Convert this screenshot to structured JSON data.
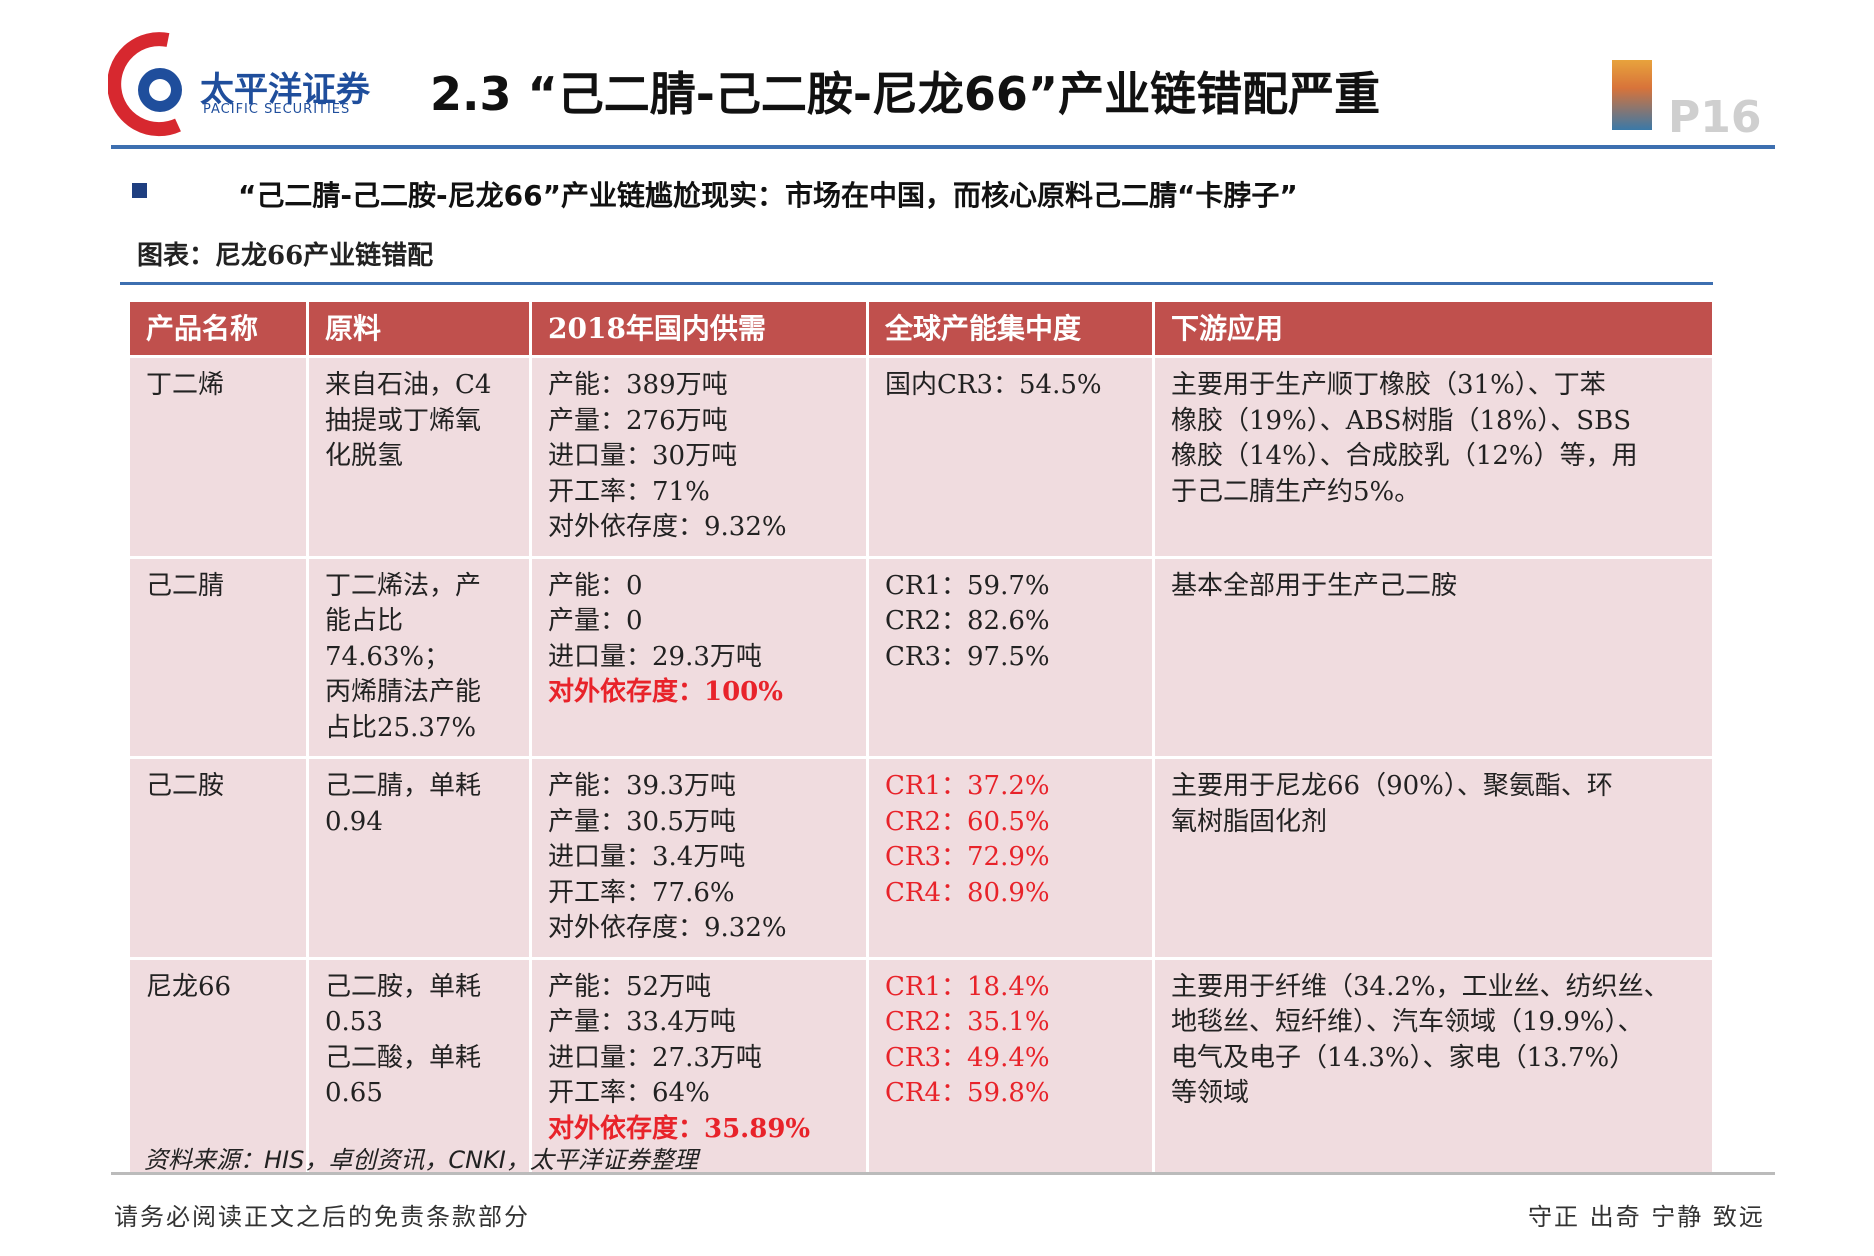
{
  "header": {
    "logo_cn": "太平洋证券",
    "logo_en": "PACIFIC SECURITIES",
    "title": "2.3 “己二腈-己二胺-尼龙66”产业链错配严重",
    "page": "P16"
  },
  "bullet": "“己二腈-己二胺-尼龙66”产业链尴尬现实：市场在中国，而核心原料己二腈“卡脖子”",
  "caption": "图表：尼龙66产业链错配",
  "table": {
    "header": [
      "产品名称",
      "原料",
      "2018年国内供需",
      "全球产能集中度",
      "下游应用"
    ],
    "rows": [
      [
        [
          "丁二烯"
        ],
        [
          "来自石油，C4",
          "抽提或丁烯氧",
          "化脱氢"
        ],
        [
          "产能：389万吨",
          "产量：276万吨",
          "进口量：30万吨",
          "开工率：71%",
          "对外依存度：9.32%"
        ],
        [
          "国内CR3：54.5%"
        ],
        [
          "主要用于生产顺丁橡胶（31%）、丁苯",
          "橡胶（19%）、ABS树脂（18%）、SBS",
          "橡胶（14%）、合成胶乳（12%）等，用",
          "于己二腈生产约5%。"
        ]
      ],
      [
        [
          "己二腈"
        ],
        [
          "丁二烯法，产",
          "能占比74.63%；",
          "丙烯腈法产能",
          "占比25.37%"
        ],
        [
          "产能：0",
          "产量：0",
          "进口量：29.3万吨",
          {
            "text": "对外依存度：100%",
            "color": "#e8232a",
            "bold": true
          }
        ],
        [
          "CR1：59.7%",
          "CR2：82.6%",
          "CR3：97.5%"
        ],
        [
          "基本全部用于生产己二胺"
        ]
      ],
      [
        [
          "己二胺"
        ],
        [
          "己二腈，单耗",
          "0.94"
        ],
        [
          "产能：39.3万吨",
          "产量：30.5万吨",
          "进口量：3.4万吨",
          "开工率：77.6%",
          "对外依存度：9.32%"
        ],
        [
          {
            "text": "CR1：37.2%",
            "color": "#e8232a"
          },
          {
            "text": "CR2：60.5%",
            "color": "#e8232a"
          },
          {
            "text": "CR3：72.9%",
            "color": "#e8232a"
          },
          {
            "text": "CR4：80.9%",
            "color": "#e8232a"
          }
        ],
        [
          "主要用于尼龙66（90%）、聚氨酯、环",
          "氧树脂固化剂"
        ]
      ],
      [
        [
          "尼龙66"
        ],
        [
          "己二胺，单耗",
          "0.53",
          "己二酸，单耗",
          "0.65"
        ],
        [
          "产能：52万吨",
          "产量：33.4万吨",
          "进口量：27.3万吨",
          "开工率：64%",
          {
            "text": "对外依存度：35.89%",
            "color": "#e8232a",
            "bold": true
          }
        ],
        [
          {
            "text": "CR1：18.4%",
            "color": "#e8232a"
          },
          {
            "text": "CR2：35.1%",
            "color": "#e8232a"
          },
          {
            "text": "CR3：49.4%",
            "color": "#e8232a"
          },
          {
            "text": "CR4：59.8%",
            "color": "#e8232a"
          }
        ],
        [
          "主要用于纤维（34.2%，工业丝、纺织丝、",
          "地毯丝、短纤维）、汽车领域（19.9%）、",
          "电气及电子（14.3%）、家电（13.7%）",
          "等领域"
        ]
      ]
    ]
  },
  "source": "资料来源：HIS，卓创资讯，CNKI，太平洋证券整理",
  "footer": {
    "disclaimer": "请务必阅读正文之后的免责条款部分",
    "motto": "守正 出奇 宁静 致远"
  }
}
